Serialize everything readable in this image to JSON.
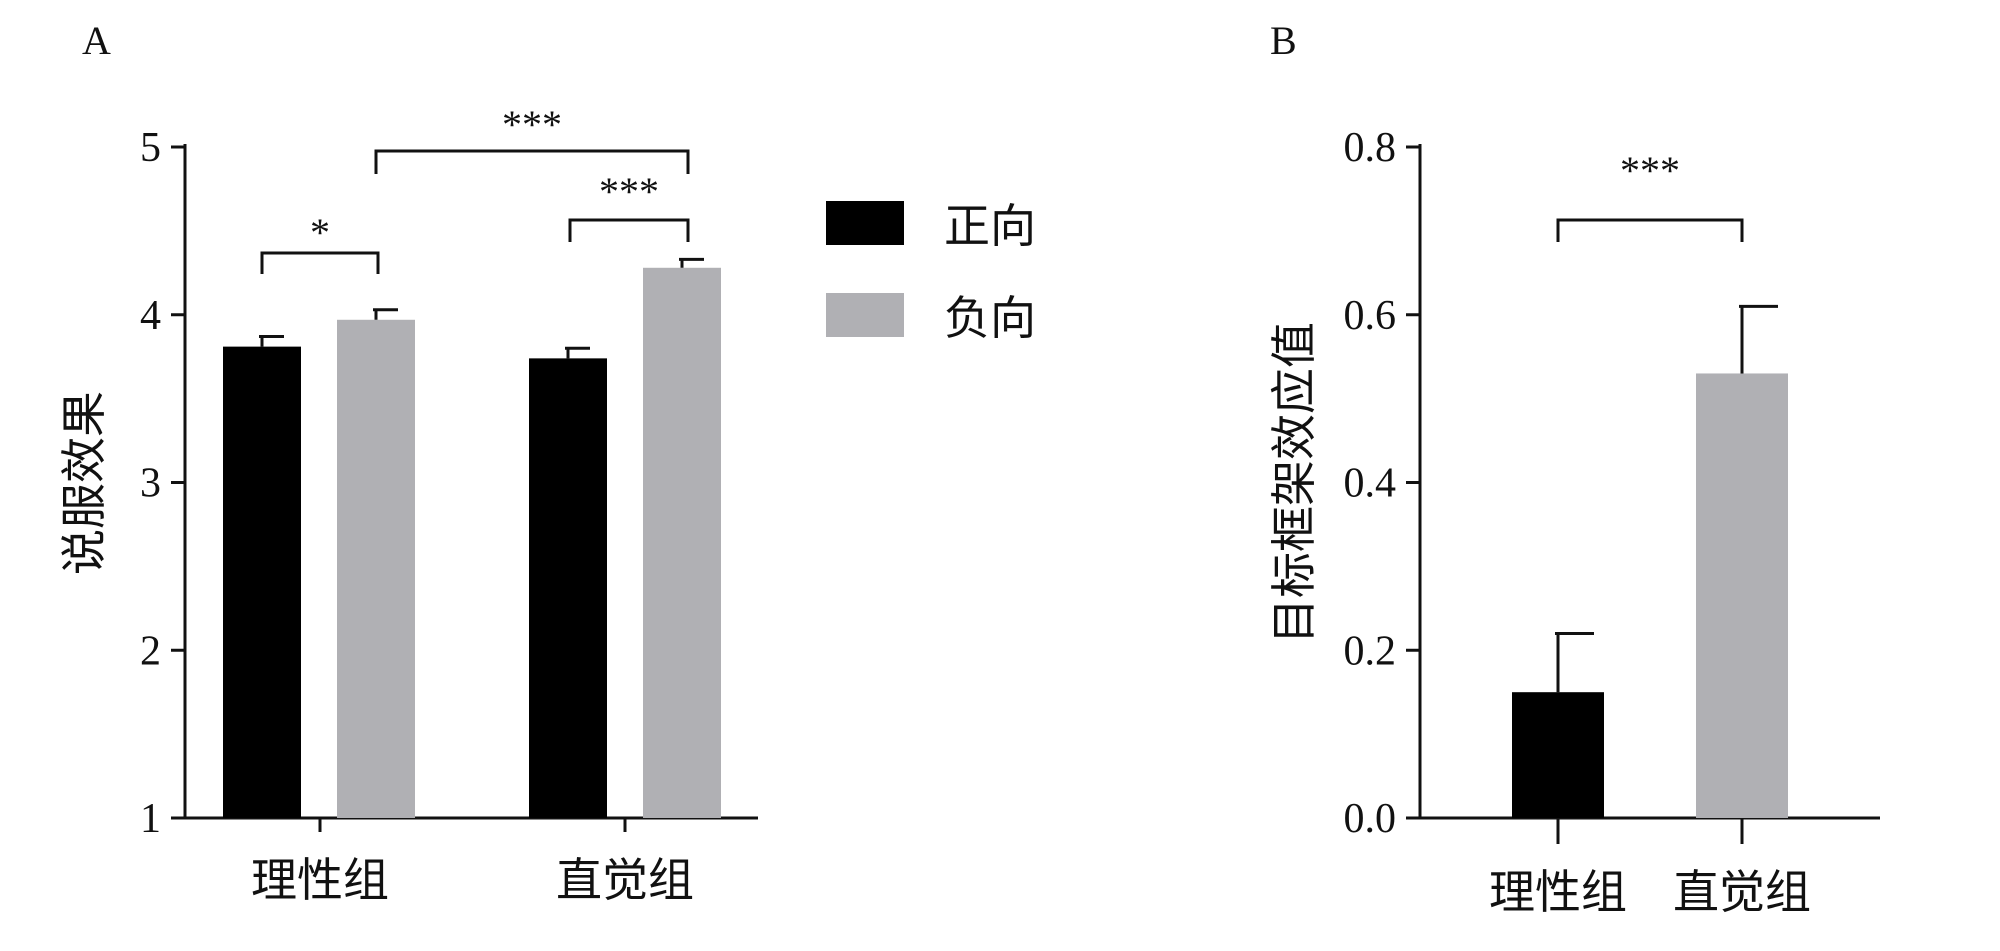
{
  "chart_data": [
    {
      "type": "bar",
      "panel_label": "A",
      "ylabel": "说服效果",
      "ylim": [
        1,
        5
      ],
      "yticks": [
        1,
        2,
        3,
        4,
        5
      ],
      "categories": [
        "理性组",
        "直觉组"
      ],
      "series": [
        {
          "name": "正向",
          "color": "#000000",
          "values": [
            3.81,
            3.74
          ],
          "errors": [
            0.06,
            0.06
          ]
        },
        {
          "name": "负向",
          "color": "#b0b0b4",
          "values": [
            3.97,
            4.28
          ],
          "errors": [
            0.06,
            0.05
          ]
        }
      ],
      "legend": {
        "position": "right"
      },
      "significance": [
        {
          "label": "*"
        },
        {
          "label": "***"
        },
        {
          "label": "***"
        }
      ]
    },
    {
      "type": "bar",
      "panel_label": "B",
      "ylabel": "目标框架效应值",
      "ylim": [
        0,
        0.8
      ],
      "yticks": [
        "0.0",
        "0.2",
        "0.4",
        "0.6",
        "0.8"
      ],
      "categories": [
        "理性组",
        "直觉组"
      ],
      "colors": [
        "#000000",
        "#b0b0b4"
      ],
      "values": [
        0.15,
        0.53
      ],
      "errors": [
        0.07,
        0.08
      ],
      "significance": [
        {
          "label": "***"
        }
      ]
    }
  ]
}
